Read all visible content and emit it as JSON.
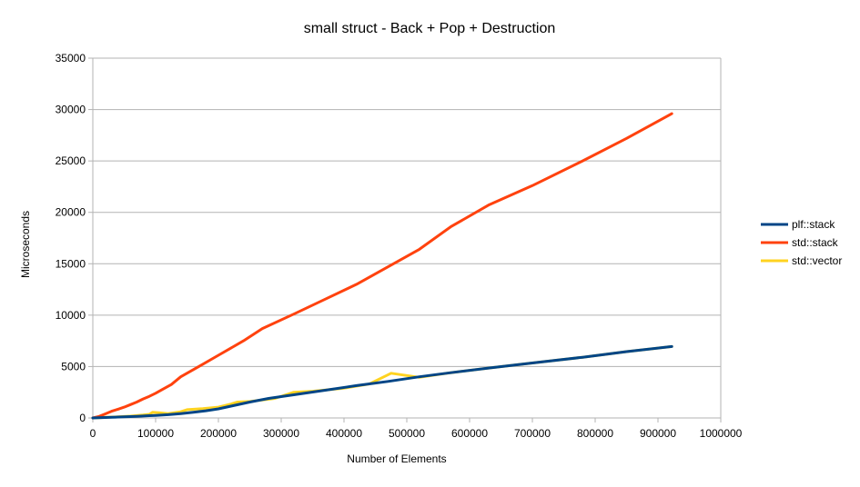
{
  "chart_data": {
    "type": "line",
    "title": "small struct - Back + Pop + Destruction",
    "xlabel": "Number of Elements",
    "ylabel": "Microseconds",
    "xlim": [
      0,
      1000000
    ],
    "ylim": [
      0,
      35000
    ],
    "xticks": [
      0,
      100000,
      200000,
      300000,
      400000,
      500000,
      600000,
      700000,
      800000,
      900000,
      1000000
    ],
    "yticks": [
      0,
      5000,
      10000,
      15000,
      20000,
      25000,
      30000,
      35000
    ],
    "grid": "horizontal",
    "legend_position": "right",
    "series": [
      {
        "name": "plf::stack",
        "color": "#004586",
        "points": [
          [
            0,
            0
          ],
          [
            10000,
            20
          ],
          [
            20000,
            40
          ],
          [
            30000,
            60
          ],
          [
            40000,
            90
          ],
          [
            50000,
            110
          ],
          [
            60000,
            130
          ],
          [
            70000,
            160
          ],
          [
            80000,
            190
          ],
          [
            90000,
            220
          ],
          [
            100000,
            250
          ],
          [
            120000,
            320
          ],
          [
            140000,
            420
          ],
          [
            160000,
            560
          ],
          [
            180000,
            700
          ],
          [
            200000,
            880
          ],
          [
            220000,
            1150
          ],
          [
            250000,
            1550
          ],
          [
            280000,
            1900
          ],
          [
            320000,
            2250
          ],
          [
            370000,
            2700
          ],
          [
            420000,
            3150
          ],
          [
            470000,
            3550
          ],
          [
            520000,
            4000
          ],
          [
            570000,
            4400
          ],
          [
            630000,
            4850
          ],
          [
            700000,
            5350
          ],
          [
            780000,
            5900
          ],
          [
            850000,
            6450
          ],
          [
            922000,
            6950
          ]
        ]
      },
      {
        "name": "std::stack",
        "color": "#ff420e",
        "points": [
          [
            0,
            0
          ],
          [
            10000,
            150
          ],
          [
            20000,
            400
          ],
          [
            30000,
            650
          ],
          [
            40000,
            850
          ],
          [
            50000,
            1050
          ],
          [
            60000,
            1300
          ],
          [
            70000,
            1550
          ],
          [
            80000,
            1850
          ],
          [
            90000,
            2100
          ],
          [
            100000,
            2400
          ],
          [
            110000,
            2750
          ],
          [
            125000,
            3250
          ],
          [
            140000,
            4000
          ],
          [
            170000,
            5050
          ],
          [
            200000,
            6100
          ],
          [
            240000,
            7500
          ],
          [
            270000,
            8700
          ],
          [
            320000,
            10100
          ],
          [
            370000,
            11550
          ],
          [
            420000,
            13000
          ],
          [
            470000,
            14700
          ],
          [
            520000,
            16400
          ],
          [
            570000,
            18600
          ],
          [
            630000,
            20700
          ],
          [
            700000,
            22600
          ],
          [
            780000,
            25000
          ],
          [
            850000,
            27200
          ],
          [
            922000,
            29600
          ]
        ]
      },
      {
        "name": "std::vector",
        "color": "#ffd320",
        "points": [
          [
            0,
            0
          ],
          [
            10000,
            30
          ],
          [
            20000,
            60
          ],
          [
            40000,
            110
          ],
          [
            60000,
            180
          ],
          [
            80000,
            280
          ],
          [
            90000,
            350
          ],
          [
            95000,
            550
          ],
          [
            105000,
            500
          ],
          [
            120000,
            420
          ],
          [
            140000,
            600
          ],
          [
            150000,
            800
          ],
          [
            175000,
            900
          ],
          [
            200000,
            1050
          ],
          [
            220000,
            1350
          ],
          [
            230000,
            1550
          ],
          [
            250000,
            1600
          ],
          [
            290000,
            1900
          ],
          [
            320000,
            2500
          ],
          [
            350000,
            2600
          ],
          [
            400000,
            2900
          ],
          [
            440000,
            3300
          ],
          [
            475000,
            4350
          ],
          [
            520000,
            3950
          ],
          [
            570000,
            4400
          ],
          [
            630000,
            4850
          ],
          [
            700000,
            5350
          ],
          [
            780000,
            5900
          ],
          [
            850000,
            6450
          ],
          [
            922000,
            6950
          ]
        ]
      }
    ]
  }
}
